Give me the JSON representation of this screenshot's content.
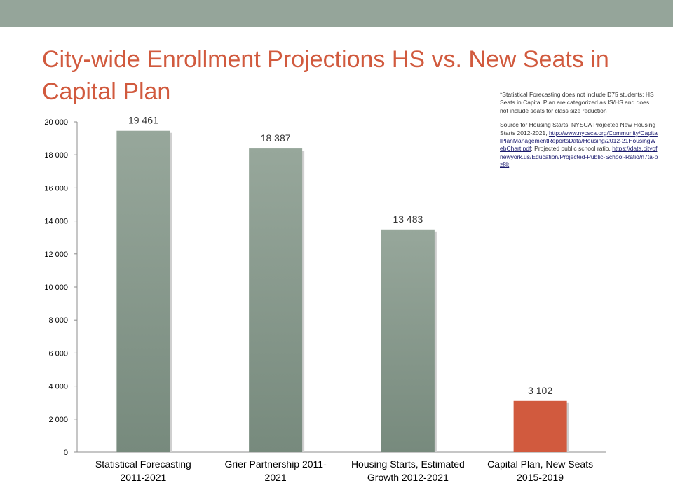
{
  "header": {
    "title": "City-wide Enrollment Projections HS vs. New Seats in Capital Plan"
  },
  "notes": {
    "note1": "*Statistical Forecasting does not include D75 students; HS Seats in Capital Plan are categorized as IS/HS and does not include seats for class size reduction",
    "source_prefix": "Source for Housing Starts: NYSCA Projected New Housing Starts 2012-2021, ",
    "link1": "http://www.nycsca.org/Community/CapitalPlanManagementReportsData/Housing/2012-21HousingWebChart.pdf",
    "source_middle": "; Projected public school ratio, ",
    "link2": "https://data.cityofnewyork.us/Education/Projected-Public-School-Ratio/n7ta-pz8k"
  },
  "colors": {
    "bar_gray": "#7e8f83",
    "bar_highlight": "#d15a3e",
    "title": "#d15a3e",
    "band": "#95a59a"
  },
  "chart_data": {
    "type": "bar",
    "categories": [
      [
        "Statistical Forecasting",
        "2011-2021"
      ],
      [
        "Grier Partnership 2011-",
        "2021"
      ],
      [
        "Housing Starts, Estimated",
        "Growth 2012-2021"
      ],
      [
        "Capital Plan, New Seats",
        "2015-2019"
      ]
    ],
    "values": [
      19461,
      18387,
      13483,
      3102
    ],
    "value_labels": [
      "19 461",
      "18 387",
      "13 483",
      "3 102"
    ],
    "bar_colors": [
      "#7e8f83",
      "#7e8f83",
      "#7e8f83",
      "#d15a3e"
    ],
    "ylim": [
      0,
      20000
    ],
    "yticks": [
      0,
      2000,
      4000,
      6000,
      8000,
      10000,
      12000,
      14000,
      16000,
      18000,
      20000
    ],
    "ytick_labels": [
      "0",
      "2 000",
      "4 000",
      "6 000",
      "8 000",
      "10 000",
      "12 000",
      "14 000",
      "16 000",
      "18 000",
      "20 000"
    ],
    "grid": false,
    "legend": "none"
  }
}
